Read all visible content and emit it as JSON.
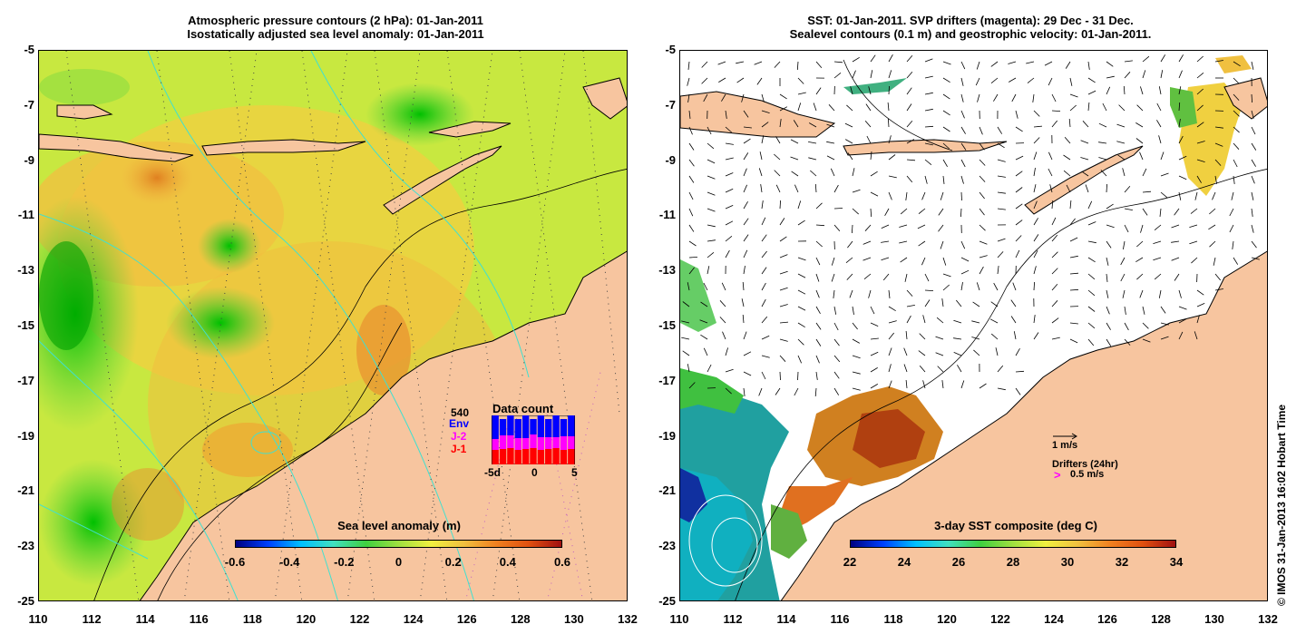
{
  "left": {
    "title_line1": "Atmospheric pressure contours (2 hPa): 01-Jan-2011",
    "title_line2": "Isostatically adjusted sea level anomaly: 01-Jan-2011",
    "colorbar": {
      "label": "Sea level anomaly (m)",
      "ticks": [
        "-0.6",
        "-0.4",
        "-0.2",
        "0",
        "0.2",
        "0.4",
        "0.6"
      ]
    },
    "inset": {
      "count": "540",
      "legend": [
        "Env",
        "J-2",
        "J-1"
      ],
      "legend_colors": [
        "#0000ff",
        "#ff00ff",
        "#ff0000"
      ],
      "title": "Data count",
      "xticks": [
        "-5d",
        "0",
        "5"
      ]
    }
  },
  "right": {
    "title_line1": "SST: 01-Jan-2011. SVP drifters (magenta): 29 Dec - 31 Dec.",
    "title_line2": "Sealevel contours (0.1 m) and geostrophic velocity: 01-Jan-2011.",
    "colorbar": {
      "label": "3-day SST composite (deg C)",
      "ticks": [
        "22",
        "24",
        "26",
        "28",
        "30",
        "32",
        "34"
      ]
    },
    "velocity_scale": "1 m/s",
    "drifters_label": "Drifters (24hr)",
    "drifters_scale": "0.5 m/s"
  },
  "axes": {
    "yticks": [
      "-5",
      "-7",
      "-9",
      "-11",
      "-13",
      "-15",
      "-17",
      "-19",
      "-21",
      "-23",
      "-25"
    ],
    "xticks": [
      "110",
      "112",
      "114",
      "116",
      "118",
      "120",
      "122",
      "124",
      "126",
      "128",
      "130",
      "132"
    ],
    "lon_range": [
      110,
      132
    ],
    "lat_range": [
      -25,
      -5
    ]
  },
  "credit": "© IMOS 31-Jan-2013 16:02 Hobart Time",
  "colors": {
    "land": "#f7c59f",
    "cyan_contour": "#40e0d0"
  }
}
